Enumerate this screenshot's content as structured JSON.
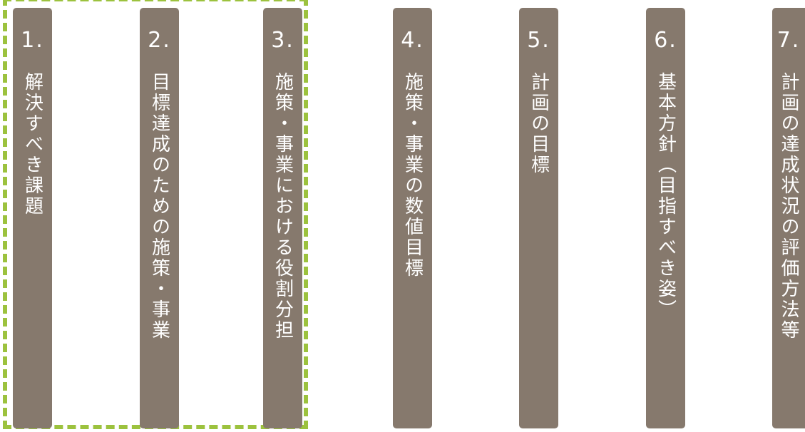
{
  "colors": {
    "card_background": "#86796d",
    "card_text": "#ffffff",
    "highlight_border": "#9cc23e",
    "background": "#ffffff"
  },
  "highlight": {
    "style": "dashed",
    "groups_cards": [
      "1.",
      "2.",
      "3."
    ]
  },
  "cards": [
    {
      "number": "1.",
      "title": "解決すべき課題"
    },
    {
      "number": "2.",
      "title": "目標達成のための施策・事業"
    },
    {
      "number": "3.",
      "title": "施策・事業における役割分担"
    },
    {
      "number": "4.",
      "title": "施策・事業の数値目標"
    },
    {
      "number": "5.",
      "title": "計画の目標"
    },
    {
      "number": "6.",
      "title": "基本方針（目指すべき姿）"
    },
    {
      "number": "7.",
      "title": "計画の達成状況の評価方法等"
    }
  ]
}
